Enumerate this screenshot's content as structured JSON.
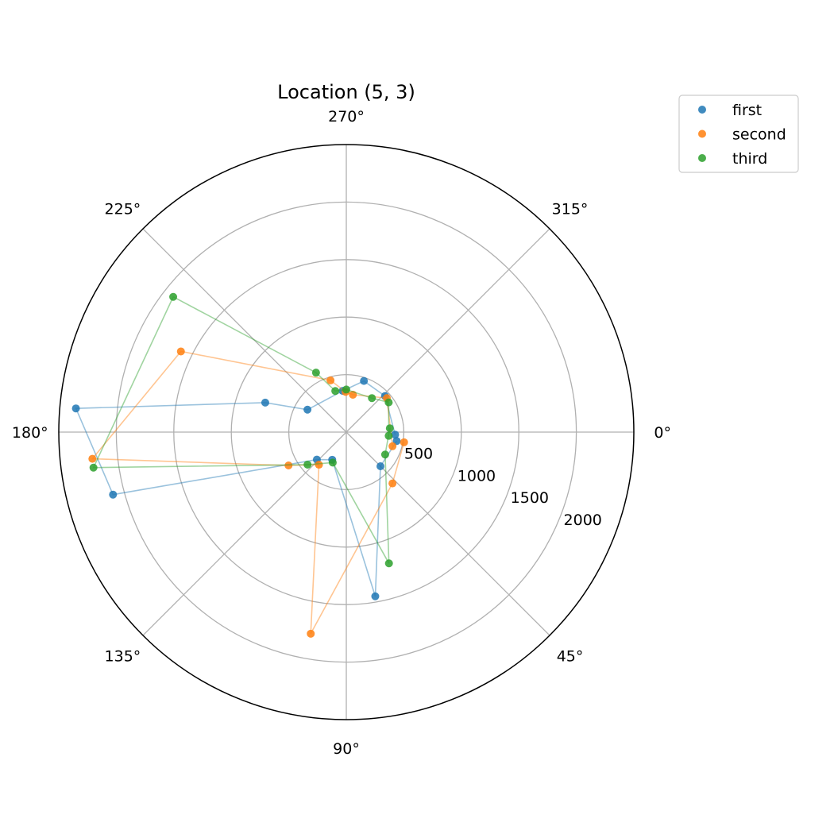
{
  "chart_data": {
    "type": "scatter",
    "subtype": "polar",
    "title": "Location (5, 3)",
    "theta_direction": "clockwise",
    "theta_zero": "east",
    "theta_ticks": [
      "0°",
      "45°",
      "90°",
      "135°",
      "180°",
      "225°",
      "270°",
      "315°"
    ],
    "r_ticks": [
      "500",
      "1000",
      "1500",
      "2000"
    ],
    "r_tick_values": [
      500,
      1000,
      1500,
      2000
    ],
    "rlim": [
      0,
      2500
    ],
    "grid": true,
    "legend_placement": "upper-right, outside axes",
    "series": [
      {
        "name": "first",
        "color": "#1f77b4",
        "points": [
          {
            "theta": 10,
            "r": 445
          },
          {
            "theta": 45,
            "r": 420
          },
          {
            "theta": 80,
            "r": 1450
          },
          {
            "theta": 117,
            "r": 270
          },
          {
            "theta": 137,
            "r": 350
          },
          {
            "theta": 165,
            "r": 2100
          },
          {
            "theta": 185,
            "r": 2360
          },
          {
            "theta": 200,
            "r": 750
          },
          {
            "theta": 210,
            "r": 390
          },
          {
            "theta": 265,
            "r": 360
          },
          {
            "theta": 289,
            "r": 470
          },
          {
            "theta": 317,
            "r": 460
          },
          {
            "theta": 3,
            "r": 425
          }
        ]
      },
      {
        "name": "second",
        "color": "#ff7f0e",
        "points": [
          {
            "theta": 10,
            "r": 510
          },
          {
            "theta": 48,
            "r": 600
          },
          {
            "theta": 100,
            "r": 1780
          },
          {
            "theta": 130,
            "r": 370
          },
          {
            "theta": 150,
            "r": 580
          },
          {
            "theta": 174,
            "r": 2220
          },
          {
            "theta": 206,
            "r": 1600
          },
          {
            "theta": 253,
            "r": 470
          },
          {
            "theta": 269,
            "r": 350
          },
          {
            "theta": 280,
            "r": 330
          },
          {
            "theta": 320,
            "r": 460
          },
          {
            "theta": 17,
            "r": 420
          }
        ]
      },
      {
        "name": "third",
        "color": "#2ca02c",
        "points": [
          {
            "theta": 355,
            "r": 380
          },
          {
            "theta": 30,
            "r": 390
          },
          {
            "theta": 72,
            "r": 1200
          },
          {
            "theta": 114,
            "r": 290
          },
          {
            "theta": 140,
            "r": 440
          },
          {
            "theta": 172,
            "r": 2220
          },
          {
            "theta": 218,
            "r": 1910
          },
          {
            "theta": 243,
            "r": 580
          },
          {
            "theta": 255,
            "r": 370
          },
          {
            "theta": 270,
            "r": 370
          },
          {
            "theta": 307,
            "r": 370
          },
          {
            "theta": 325,
            "r": 450
          },
          {
            "theta": 5,
            "r": 370
          }
        ]
      }
    ]
  }
}
